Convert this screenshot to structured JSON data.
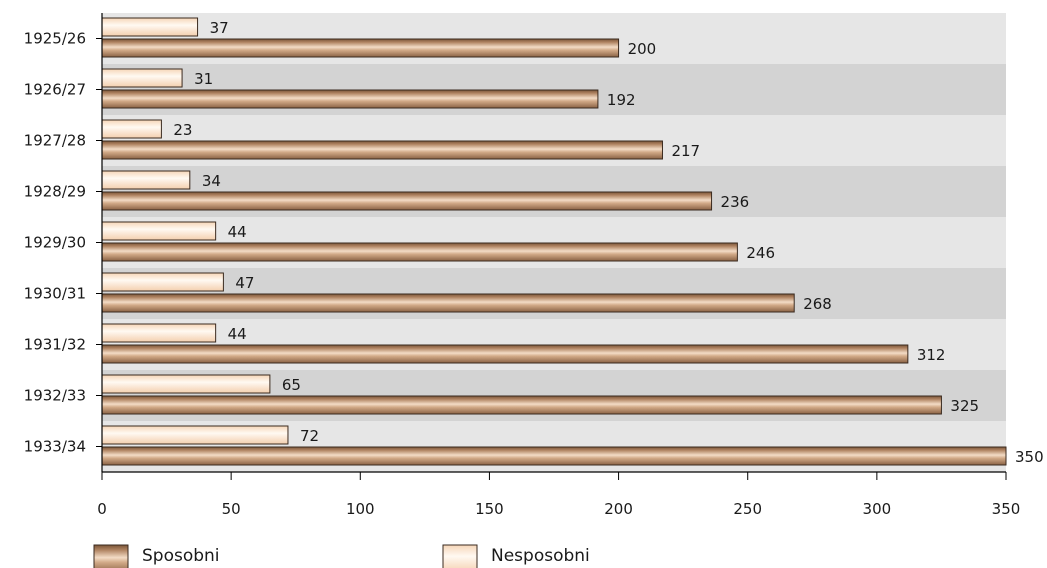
{
  "chart_data": {
    "type": "bar",
    "orientation": "horizontal",
    "categories": [
      "1925/26",
      "1926/27",
      "1927/28",
      "1928/29",
      "1929/30",
      "1930/31",
      "1931/32",
      "1932/33",
      "1933/34"
    ],
    "series": [
      {
        "name": "Nesposobni",
        "values": [
          37,
          31,
          23,
          34,
          44,
          47,
          44,
          65,
          72
        ],
        "color": "#fde9d6"
      },
      {
        "name": "Sposobni",
        "values": [
          200,
          192,
          217,
          236,
          246,
          268,
          312,
          325,
          350
        ],
        "color": "#c49a76"
      }
    ],
    "x_ticks": [
      0,
      50,
      100,
      150,
      200,
      250,
      300,
      350
    ],
    "xlim": [
      0,
      350
    ],
    "legend": {
      "placement": "bottom",
      "items": [
        "Sposobni",
        "Nesposobni"
      ]
    },
    "band_colors": [
      "#e6e6e6",
      "#d3d3d3"
    ],
    "title": "",
    "xlabel": "",
    "ylabel": ""
  }
}
